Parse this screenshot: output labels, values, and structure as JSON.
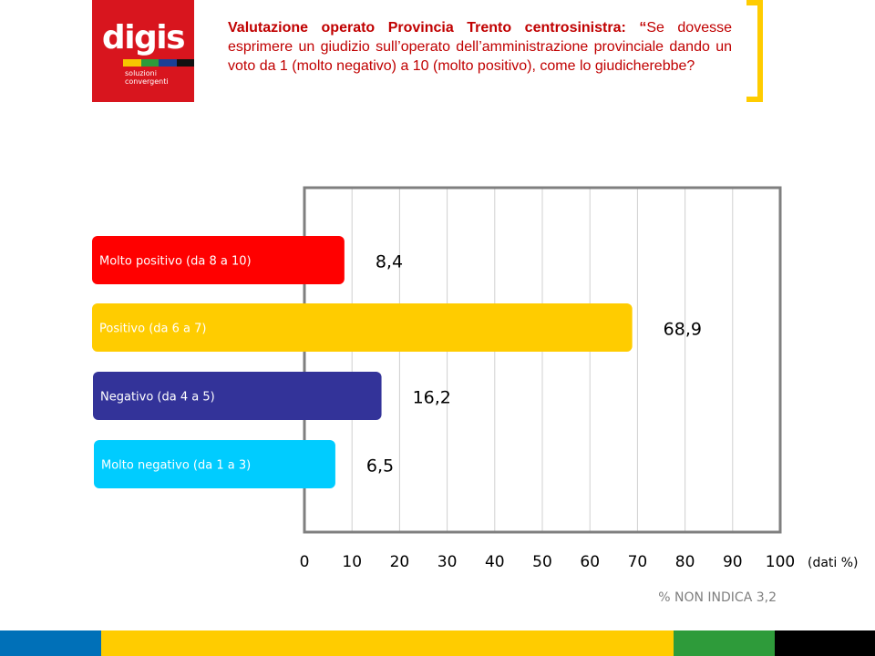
{
  "logo": {
    "word": "digis",
    "tagline": "soluzioni\nconvergenti",
    "stripe_colors": [
      "#f7c600",
      "#2e9b3a",
      "#1b3f94",
      "#111111"
    ]
  },
  "question": {
    "lead": "Valutazione operato Provincia Trento centrosinistra: “",
    "body": "Se dovesse esprimere un giudizio sull’operato dell’amministrazione provinciale dando un voto da 1 (molto negativo) a 10 (molto positivo), come lo giudicherebbe?"
  },
  "colors": {
    "accent_yellow": "#ffcc00",
    "title_red": "#c00000",
    "plot_border": "#7f7f7f",
    "bottom_bar": [
      "#0070b8",
      "#ffcc00",
      "#2e9b3a",
      "#000000"
    ]
  },
  "chart_data": {
    "type": "bar",
    "orientation": "horizontal",
    "categories": [
      "Molto positivo (da 8 a 10)",
      "Positivo (da 6 a 7)",
      "Negativo (da 4 a 5)",
      "Molto negativo (da 1 a 3)"
    ],
    "values": [
      8.4,
      68.9,
      16.2,
      6.5
    ],
    "value_labels": [
      "8,4",
      "68,9",
      "16,2",
      "6,5"
    ],
    "bar_colors": [
      "#ff0000",
      "#ffcc00",
      "#333399",
      "#00ccff"
    ],
    "xlim": [
      0,
      100
    ],
    "x_ticks": [
      "0",
      "10",
      "20",
      "30",
      "40",
      "50",
      "60",
      "70",
      "80",
      "90",
      "100"
    ],
    "x_unit": "(dati %)",
    "grid": "vertical",
    "note": "% NON INDICA 3,2"
  }
}
